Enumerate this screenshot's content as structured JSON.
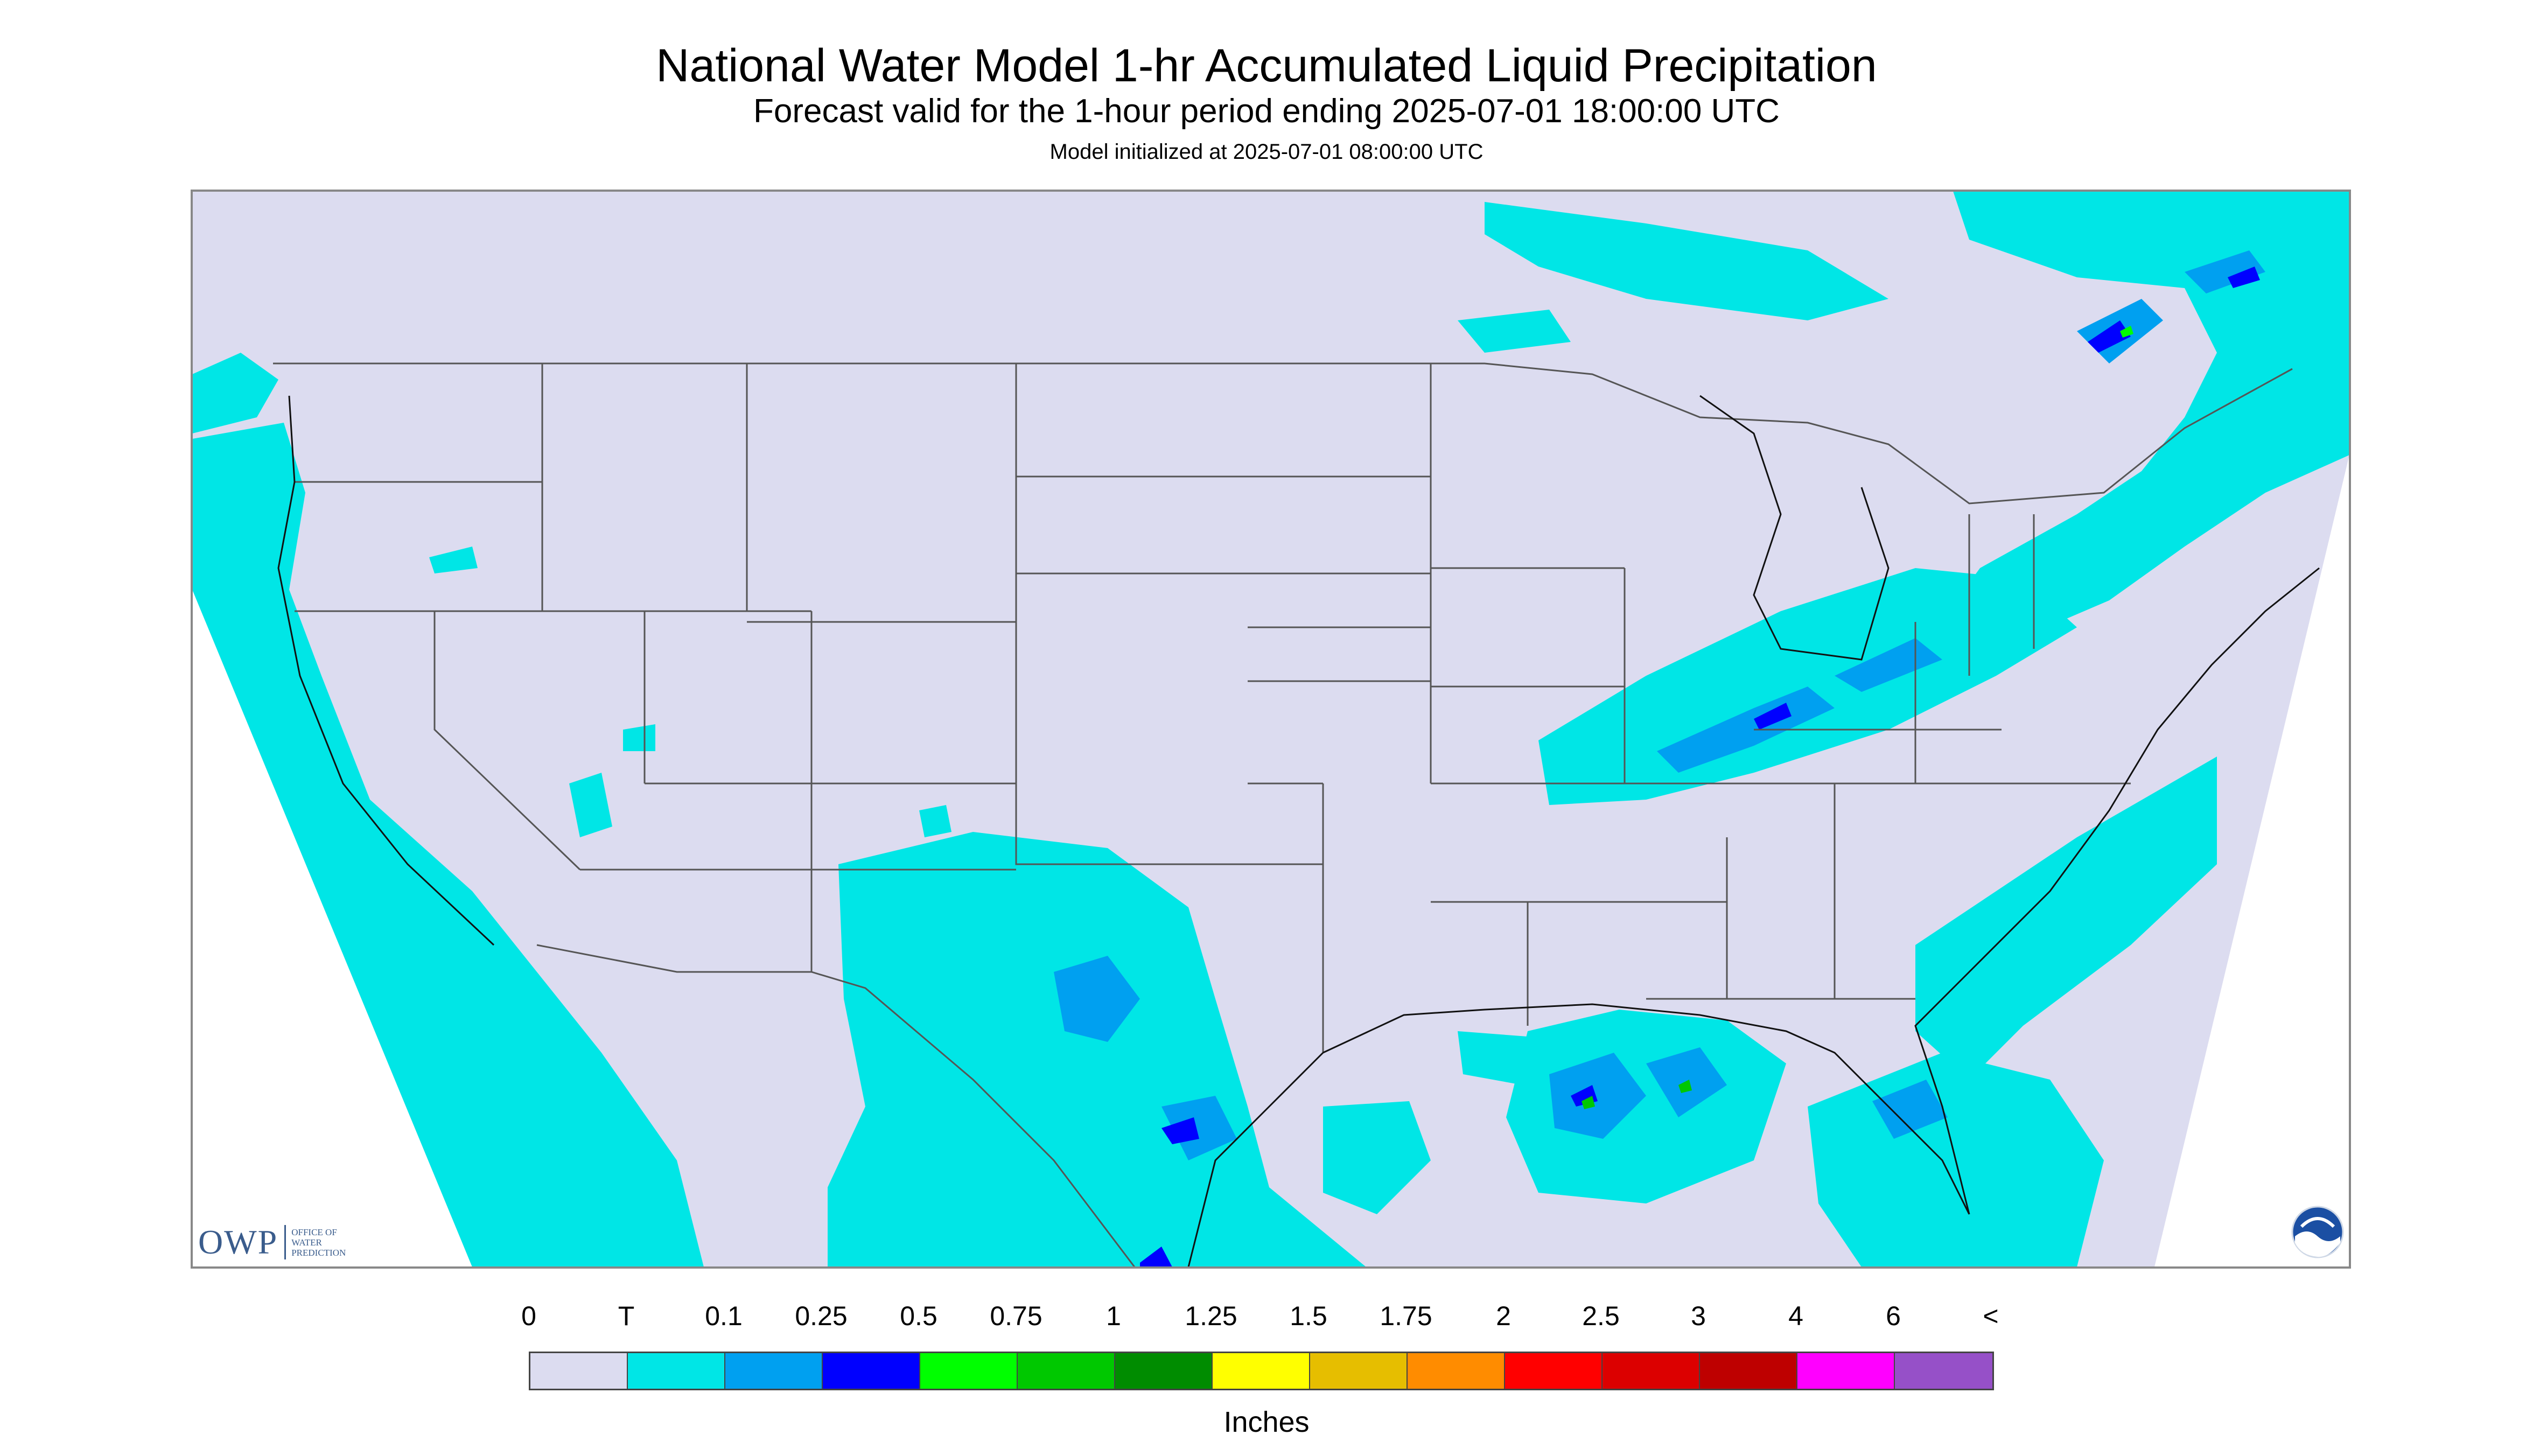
{
  "header": {
    "title": "National Water Model 1-hr Accumulated Liquid Precipitation",
    "subtitle": "Forecast valid for the 1-hour period ending 2025-07-01 18:00:00 UTC",
    "init": "Model initialized at 2025-07-01 08:00:00 UTC"
  },
  "map": {
    "background_color": "#dcdcf0",
    "state_line_color": "#555555",
    "coast_color": "#111111"
  },
  "logos": {
    "owp_mark": "OWP",
    "owp_text": "Office of Water Prediction",
    "noaa_icon": "noaa-logo-icon"
  },
  "legend": {
    "units": "Inches",
    "labels": [
      "0",
      "T",
      "0.1",
      "0.25",
      "0.5",
      "0.75",
      "1",
      "1.25",
      "1.5",
      "1.75",
      "2",
      "2.5",
      "3",
      "4",
      "6",
      "<"
    ],
    "colors": [
      "#dcdcf0",
      "#00e6e6",
      "#00a0f0",
      "#0000ff",
      "#00ff00",
      "#00c800",
      "#008c00",
      "#ffff00",
      "#e6be00",
      "#ff8c00",
      "#ff0000",
      "#dc0000",
      "#be0000",
      "#ff00ff",
      "#9650c8"
    ]
  }
}
